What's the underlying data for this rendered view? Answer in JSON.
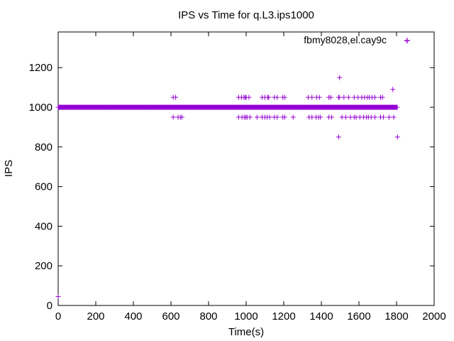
{
  "chart_data": {
    "type": "scatter",
    "title": "IPS vs Time for q.L3.ips1000",
    "xlabel": "Time(s)",
    "ylabel": "IPS",
    "xlim": [
      0,
      2000
    ],
    "ylim": [
      0,
      1380
    ],
    "xticks": [
      0,
      200,
      400,
      600,
      800,
      1000,
      1200,
      1400,
      1600,
      1800,
      2000
    ],
    "yticks": [
      0,
      200,
      400,
      600,
      800,
      1000,
      1200
    ],
    "grid": false,
    "legend_position": "top-right",
    "marker": "plus",
    "series": [
      {
        "name": "fbmy8028,el.cay9c",
        "color": "#9400d3",
        "baseline": {
          "y": 1000,
          "x_start": 0,
          "x_end": 1805,
          "step": 2
        },
        "x": [
          0,
          612,
          625,
          650,
          612,
          638,
          658,
          960,
          975,
          988,
          995,
          1000,
          1015,
          960,
          978,
          990,
          998,
          1005,
          1020,
          1058,
          1085,
          1100,
          1115,
          1120,
          1150,
          1165,
          1195,
          1205,
          1085,
          1100,
          1112,
          1125,
          1150,
          1165,
          1195,
          1205,
          1250,
          1330,
          1350,
          1375,
          1390,
          1335,
          1350,
          1372,
          1385,
          1395,
          1440,
          1450,
          1495,
          1520,
          1545,
          1575,
          1595,
          1615,
          1630,
          1645,
          1655,
          1670,
          1685,
          1715,
          1725,
          1440,
          1455,
          1510,
          1530,
          1555,
          1575,
          1585,
          1605,
          1625,
          1640,
          1650,
          1665,
          1685,
          1715,
          1730,
          1760,
          1785,
          1492,
          1497,
          1780,
          1492,
          1805,
          1855
        ],
        "y": [
          45,
          1050,
          1050,
          950,
          950,
          950,
          950,
          1050,
          1050,
          1050,
          1050,
          1050,
          1050,
          950,
          950,
          950,
          950,
          950,
          950,
          950,
          1050,
          1050,
          1050,
          1050,
          1050,
          1050,
          1050,
          1050,
          950,
          950,
          950,
          950,
          950,
          950,
          950,
          950,
          950,
          1050,
          1050,
          1050,
          1050,
          950,
          950,
          950,
          950,
          950,
          1050,
          1050,
          1050,
          1050,
          1050,
          1050,
          1050,
          1050,
          1050,
          1050,
          1050,
          1050,
          1050,
          1050,
          1050,
          950,
          950,
          950,
          950,
          950,
          950,
          950,
          950,
          950,
          950,
          950,
          950,
          950,
          950,
          950,
          950,
          950,
          1050,
          1150,
          1090,
          850,
          850,
          1335
        ]
      }
    ]
  }
}
